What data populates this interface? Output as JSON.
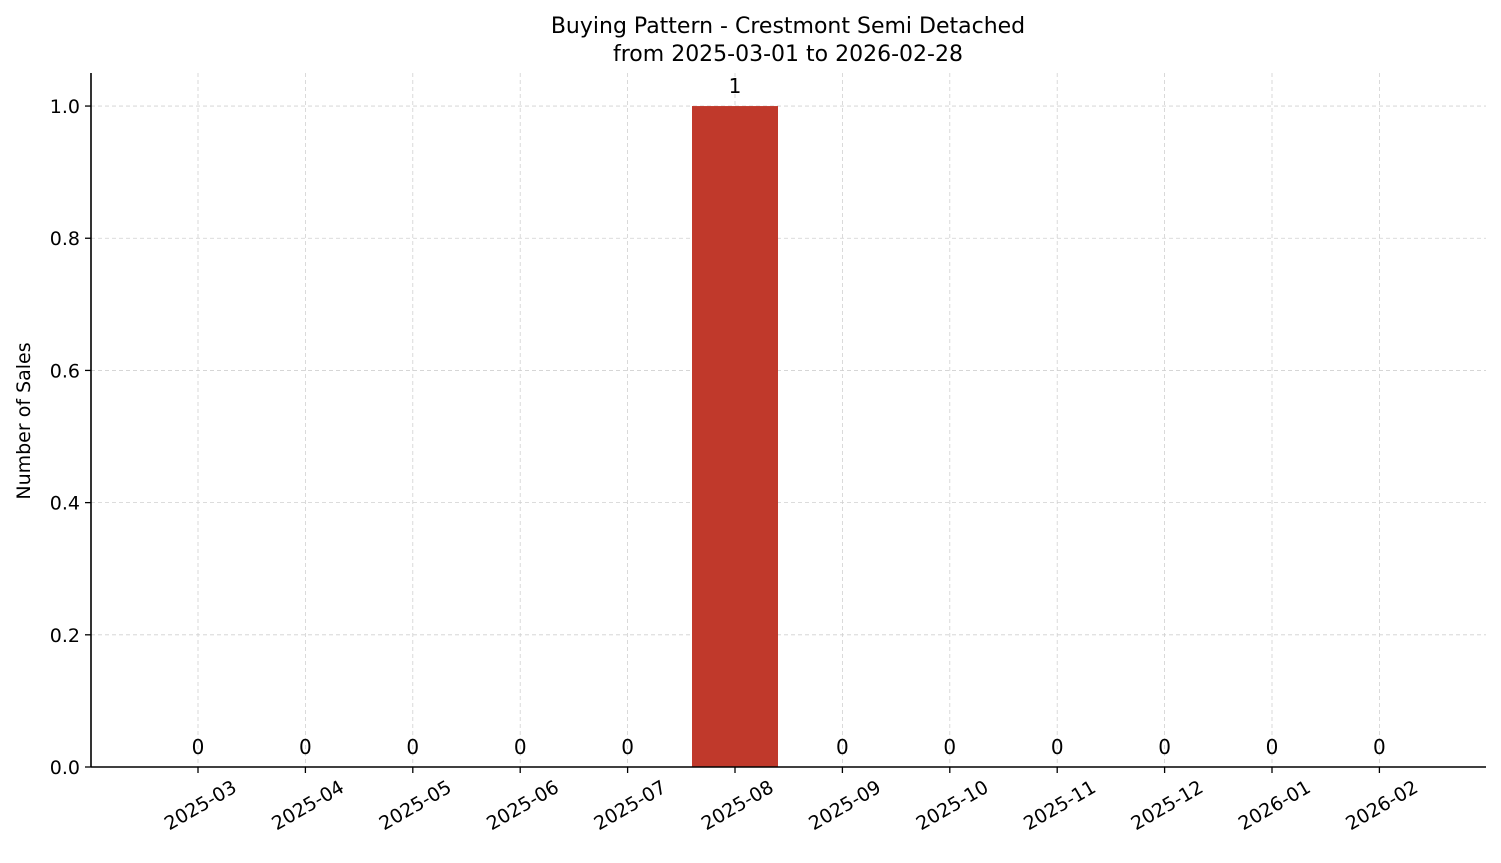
{
  "chart_data": {
    "type": "bar",
    "title": "Buying Pattern - Crestmont Semi Detached",
    "subtitle": "from 2025-03-01 to 2026-02-28",
    "xlabel": "",
    "ylabel": "Number of Sales",
    "categories": [
      "2025-03",
      "2025-04",
      "2025-05",
      "2025-06",
      "2025-07",
      "2025-08",
      "2025-09",
      "2025-10",
      "2025-11",
      "2025-12",
      "2026-01",
      "2026-02"
    ],
    "values": [
      0,
      0,
      0,
      0,
      0,
      1,
      0,
      0,
      0,
      0,
      0,
      0
    ],
    "data_labels": [
      "0",
      "0",
      "0",
      "0",
      "0",
      "1",
      "0",
      "0",
      "0",
      "0",
      "0",
      "0"
    ],
    "ylim": [
      0,
      1.05
    ],
    "yticks": [
      0.0,
      0.2,
      0.4,
      0.6,
      0.8,
      1.0
    ],
    "ytick_labels": [
      "0.0",
      "0.2",
      "0.4",
      "0.6",
      "0.8",
      "1.0"
    ],
    "bar_color": "#c0392b",
    "grid": true,
    "legend": "none"
  }
}
